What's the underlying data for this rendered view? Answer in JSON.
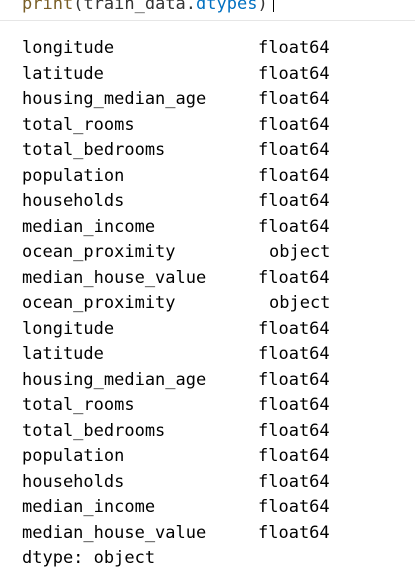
{
  "code": {
    "fn": "print",
    "open": "(",
    "var": "train_data",
    "dot": ".",
    "attr": "dtypes",
    "close": ")"
  },
  "output": {
    "rows": [
      {
        "name": "longitude",
        "dtype": "float64"
      },
      {
        "name": "latitude",
        "dtype": "float64"
      },
      {
        "name": "housing_median_age",
        "dtype": "float64"
      },
      {
        "name": "total_rooms",
        "dtype": "float64"
      },
      {
        "name": "total_bedrooms",
        "dtype": "float64"
      },
      {
        "name": "population",
        "dtype": "float64"
      },
      {
        "name": "households",
        "dtype": "float64"
      },
      {
        "name": "median_income",
        "dtype": "float64"
      },
      {
        "name": "ocean_proximity",
        "dtype": "object"
      },
      {
        "name": "median_house_value",
        "dtype": "float64"
      },
      {
        "name": "ocean_proximity",
        "dtype": "object"
      },
      {
        "name": "longitude",
        "dtype": "float64"
      },
      {
        "name": "latitude",
        "dtype": "float64"
      },
      {
        "name": "housing_median_age",
        "dtype": "float64"
      },
      {
        "name": "total_rooms",
        "dtype": "float64"
      },
      {
        "name": "total_bedrooms",
        "dtype": "float64"
      },
      {
        "name": "population",
        "dtype": "float64"
      },
      {
        "name": "households",
        "dtype": "float64"
      },
      {
        "name": "median_income",
        "dtype": "float64"
      },
      {
        "name": "median_house_value",
        "dtype": "float64"
      }
    ],
    "footer": "dtype: object"
  }
}
